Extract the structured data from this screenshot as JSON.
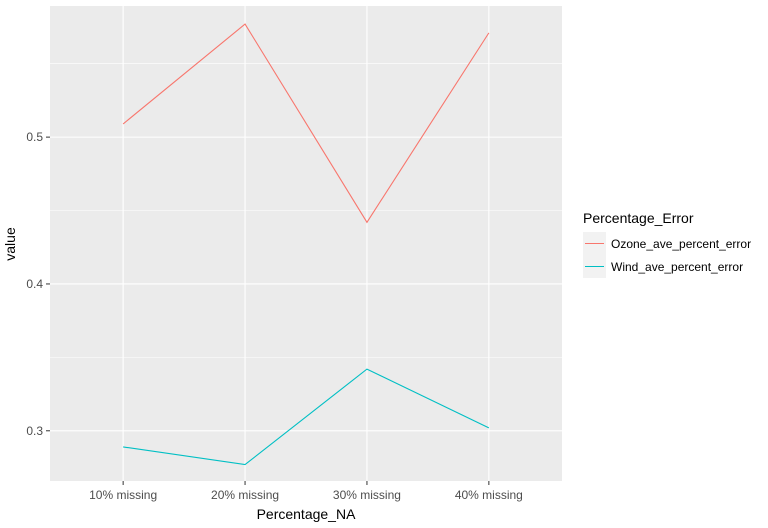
{
  "chart_data": {
    "type": "line",
    "xlabel": "Percentage_NA",
    "ylabel": "value",
    "categories": [
      "10% missing",
      "20% missing",
      "30% missing",
      "40% missing"
    ],
    "ylim": [
      0.2658,
      0.5893
    ],
    "yticks": [
      0.3,
      0.4,
      0.5
    ],
    "ytick_labels": [
      "0.3",
      "0.4",
      "0.5"
    ],
    "grid": true,
    "legend": {
      "title": "Percentage_Error",
      "position": "right"
    },
    "series": [
      {
        "name": "Ozone_ave_percent_error",
        "color": "#F8766D",
        "values": [
          0.509,
          0.577,
          0.442,
          0.571
        ]
      },
      {
        "name": "Wind_ave_percent_error",
        "color": "#00BFC4",
        "values": [
          0.289,
          0.277,
          0.342,
          0.302
        ]
      }
    ]
  }
}
